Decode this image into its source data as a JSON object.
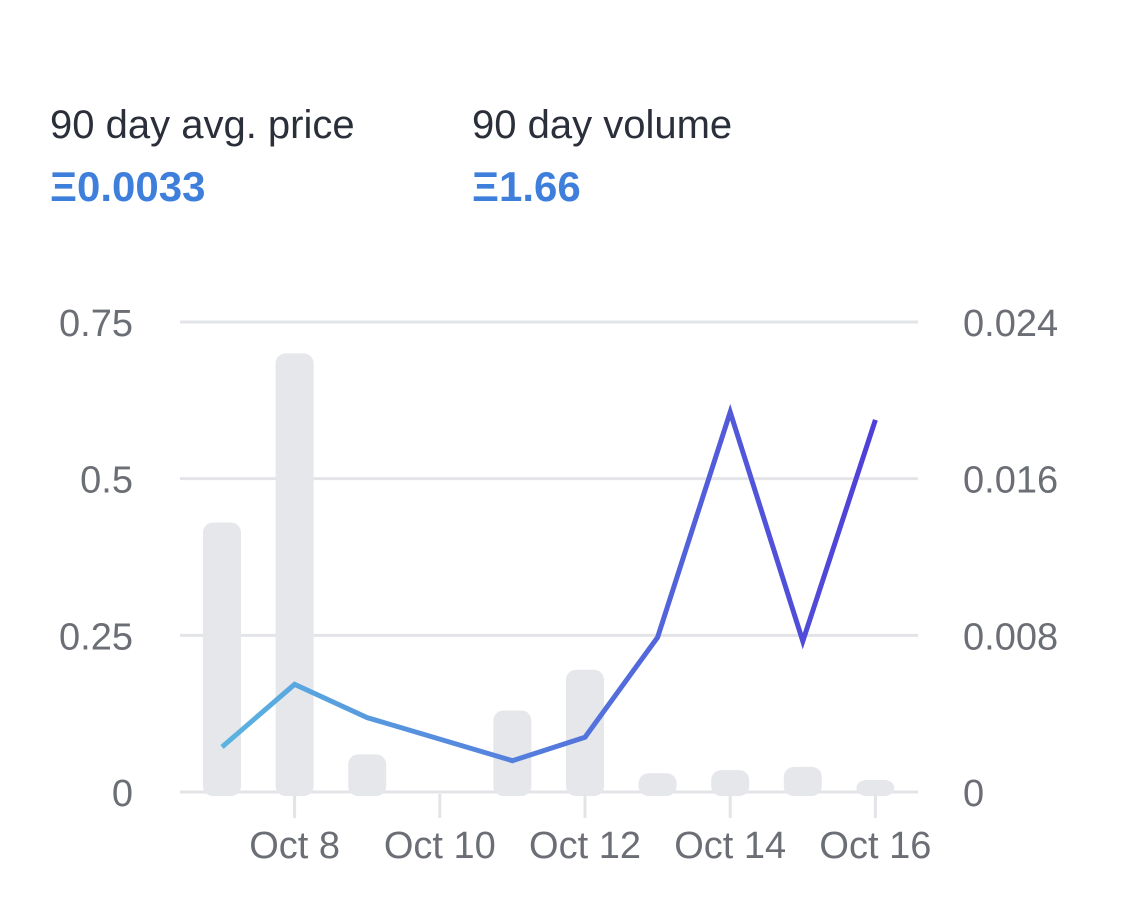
{
  "stats": {
    "avg_price_label": "90 day avg. price",
    "avg_price_value": "Ξ0.0033",
    "volume_label": "90 day volume",
    "volume_value": "Ξ1.66"
  },
  "colors": {
    "accent": "#3f7fdc",
    "bar": "#e6e7eb",
    "grid": "#e3e4e8",
    "line_start": "#5ab4e0",
    "line_end": "#4f3fd8"
  },
  "chart_data": {
    "type": "bar",
    "x": [
      "Oct 7",
      "Oct 8",
      "Oct 9",
      "Oct 10",
      "Oct 11",
      "Oct 12",
      "Oct 13",
      "Oct 14",
      "Oct 15",
      "Oct 16"
    ],
    "series": [
      {
        "type": "bar",
        "axis": "left",
        "values": [
          0.43,
          0.7,
          0.06,
          0,
          0.13,
          0.195,
          0.03,
          0.035,
          0.04,
          0.015
        ]
      },
      {
        "type": "line",
        "axis": "right",
        "values": [
          0.0023,
          0.0055,
          0.0038,
          null,
          0.0016,
          0.0028,
          0.0079,
          0.0194,
          0.0077,
          0.019
        ]
      }
    ],
    "x_tick_labels": [
      "Oct 8",
      "Oct 10",
      "Oct 12",
      "Oct 14",
      "Oct 16"
    ],
    "y_left": {
      "ylim": [
        0,
        0.75
      ],
      "ticks": [
        0,
        0.25,
        0.5,
        0.75
      ],
      "tick_labels": [
        "0",
        "0.25",
        "0.5",
        "0.75"
      ]
    },
    "y_right": {
      "ylim": [
        0,
        0.024
      ],
      "ticks": [
        0,
        0.008,
        0.016,
        0.024
      ],
      "tick_labels": [
        "0",
        "0.008",
        "0.016",
        "0.024"
      ]
    },
    "grid": true,
    "legend": "none"
  }
}
